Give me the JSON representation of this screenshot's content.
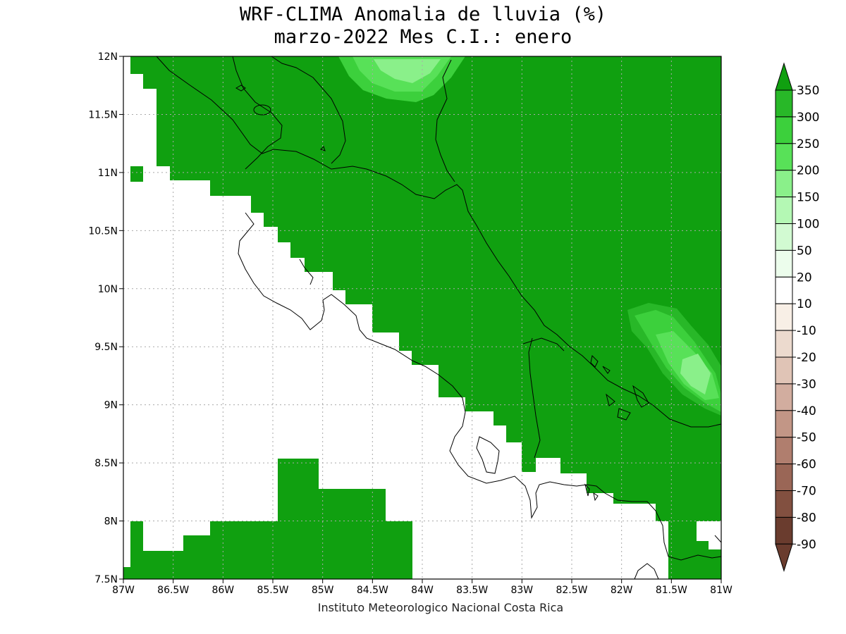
{
  "title_line1": "WRF-CLIMA Anomalia de lluvia (%)",
  "title_line2": "marzo-2022 Mes C.I.: enero",
  "credit": "Instituto Meteorologico Nacional Costa Rica",
  "map": {
    "lon_range": [
      -87,
      -81
    ],
    "lat_range": [
      7.5,
      12
    ],
    "grid": true,
    "x_ticks": [
      "87W",
      "86.5W",
      "86W",
      "85.5W",
      "85W",
      "84.5W",
      "84W",
      "83.5W",
      "83W",
      "82.5W",
      "82W",
      "81.5W",
      "81W"
    ],
    "y_ticks": [
      "7.5N",
      "8N",
      "8.5N",
      "9N",
      "9.5N",
      "10N",
      "10.5N",
      "11N",
      "11.5N",
      "12N"
    ]
  },
  "colorbar": {
    "levels": [
      "350",
      "300",
      "250",
      "200",
      "150",
      "100",
      "50",
      "20",
      "10",
      "-10",
      "-20",
      "-30",
      "-40",
      "-50",
      "-60",
      "-70",
      "-80",
      "-90"
    ],
    "colors": [
      "#10a010",
      "#28b828",
      "#3cd03c",
      "#58e158",
      "#8af08a",
      "#b4f8b4",
      "#d2fad2",
      "#ecfdec",
      "#ffffff",
      "#f8efe6",
      "#ecdace",
      "#e0c4b6",
      "#d2ad9f",
      "#c29686",
      "#b07e6e",
      "#9a6656",
      "#825040",
      "#6a3c2e"
    ]
  },
  "colors": {
    "positive_fill": "#10a010",
    "no_change": "#ffffff",
    "grid": "#a9a9a9",
    "coast": "#000000"
  }
}
